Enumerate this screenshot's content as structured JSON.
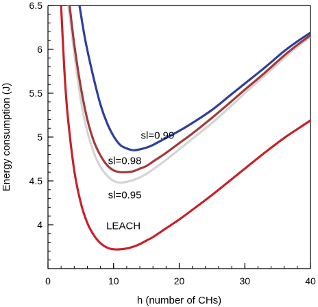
{
  "chart_data": {
    "type": "line",
    "title": "",
    "xlabel": "h (number of CHs)",
    "ylabel": "Energy consumption (J)",
    "xlim": [
      0,
      40
    ],
    "ylim": [
      3.5,
      6.5
    ],
    "xticks": [
      0,
      10,
      20,
      30,
      40
    ],
    "xtick_labels": [
      "0",
      "10",
      "20",
      "30",
      "40"
    ],
    "yticks": [
      4,
      4.5,
      5,
      5.5,
      6,
      6.5
    ],
    "ytick_labels": [
      "4",
      "4.5",
      "5",
      "5.5",
      "6",
      "6.5"
    ],
    "grid": false,
    "legend": "none",
    "series": [
      {
        "name": "sl=0.99",
        "color": "#2e3f9a",
        "x": [
          4.8,
          5.5,
          6,
          7,
          8,
          9,
          10,
          11,
          12,
          13,
          14,
          15,
          16,
          18,
          20,
          22,
          25,
          28,
          30,
          33,
          36,
          38,
          40
        ],
        "y": [
          6.5,
          6.18,
          5.99,
          5.66,
          5.37,
          5.16,
          5.01,
          4.91,
          4.87,
          4.85,
          4.86,
          4.88,
          4.91,
          4.99,
          5.07,
          5.16,
          5.31,
          5.49,
          5.61,
          5.79,
          5.98,
          6.09,
          6.19
        ]
      },
      {
        "name": "sl=0.98",
        "color": "#a23a3a",
        "x": [
          3.3,
          4,
          5,
          6,
          7,
          8,
          9,
          10,
          11,
          12,
          13,
          14,
          15,
          16,
          18,
          20,
          22,
          25,
          28,
          30,
          33,
          36,
          38,
          40
        ],
        "y": [
          6.5,
          6.06,
          5.57,
          5.2,
          4.95,
          4.79,
          4.68,
          4.62,
          4.6,
          4.6,
          4.61,
          4.64,
          4.67,
          4.72,
          4.82,
          4.93,
          5.04,
          5.22,
          5.41,
          5.54,
          5.73,
          5.93,
          6.05,
          6.16
        ]
      },
      {
        "name": "sl=0.95",
        "color": "#d4d4d4",
        "x": [
          3.1,
          4,
          5,
          6,
          7,
          8,
          9,
          10,
          11,
          12,
          13,
          14,
          15,
          16,
          18,
          20,
          22,
          25,
          28,
          30,
          33,
          36,
          38,
          40
        ],
        "y": [
          6.5,
          5.96,
          5.42,
          5.06,
          4.82,
          4.66,
          4.56,
          4.5,
          4.48,
          4.49,
          4.51,
          4.54,
          4.58,
          4.63,
          4.74,
          4.86,
          4.98,
          5.16,
          5.36,
          5.5,
          5.7,
          5.9,
          6.03,
          6.14
        ]
      },
      {
        "name": "LEACH",
        "color": "#c8202a",
        "x": [
          2,
          2.5,
          3,
          4,
          5,
          6,
          7,
          8,
          9,
          10,
          11,
          12,
          13,
          14,
          15,
          16,
          18,
          20,
          22,
          25,
          28,
          30,
          33,
          36,
          38,
          40
        ],
        "y": [
          6.5,
          5.76,
          5.25,
          4.62,
          4.25,
          4.02,
          3.88,
          3.79,
          3.74,
          3.72,
          3.72,
          3.73,
          3.75,
          3.78,
          3.82,
          3.86,
          3.96,
          4.06,
          4.17,
          4.34,
          4.52,
          4.64,
          4.82,
          4.99,
          5.09,
          5.19
        ]
      }
    ],
    "annotations": [
      {
        "text": "sl=0.99",
        "x": 16.7,
        "y": 4.98
      },
      {
        "text": "sl=0.98",
        "x": 11.7,
        "y": 4.69
      },
      {
        "text": "sl=0.95",
        "x": 11.7,
        "y": 4.3
      },
      {
        "text": "LEACH",
        "x": 11.5,
        "y": 3.95
      }
    ]
  }
}
